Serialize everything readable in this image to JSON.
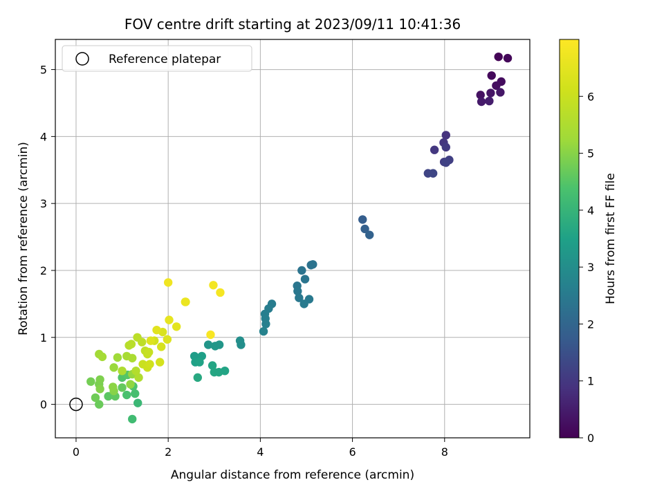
{
  "chart_data": {
    "type": "scatter",
    "title": "FOV centre drift starting at 2023/09/11 10:41:36",
    "xlabel": "Angular distance from reference (arcmin)",
    "ylabel": "Rotation from reference (arcmin)",
    "xlim": [
      -0.45,
      9.85
    ],
    "ylim": [
      -0.5,
      5.45
    ],
    "xticks": [
      0,
      2,
      4,
      6,
      8
    ],
    "yticks": [
      0,
      1,
      2,
      3,
      4,
      5
    ],
    "grid": true,
    "legend": {
      "placement": "top-left",
      "entries": [
        "Reference platepar"
      ]
    },
    "colormap": "viridis",
    "colorbar": {
      "label": "Hours from first FF file",
      "range": [
        0,
        7.0
      ],
      "ticks": [
        0,
        1,
        2,
        3,
        4,
        5,
        6
      ]
    },
    "reference_point": {
      "x": 0,
      "y": 0,
      "name": "Reference platepar"
    },
    "series": [
      {
        "points": [
          {
            "x": 9.17,
            "y": 5.19,
            "c": 0.05
          },
          {
            "x": 9.37,
            "y": 5.17,
            "c": 0.1
          },
          {
            "x": 9.02,
            "y": 4.91,
            "c": 0.15
          },
          {
            "x": 9.23,
            "y": 4.82,
            "c": 0.2
          },
          {
            "x": 9.12,
            "y": 4.76,
            "c": 0.25
          },
          {
            "x": 8.78,
            "y": 4.62,
            "c": 0.3
          },
          {
            "x": 9.0,
            "y": 4.65,
            "c": 0.35
          },
          {
            "x": 9.21,
            "y": 4.66,
            "c": 0.4
          },
          {
            "x": 8.8,
            "y": 4.52,
            "c": 0.45
          },
          {
            "x": 8.97,
            "y": 4.53,
            "c": 0.5
          },
          {
            "x": 8.03,
            "y": 4.02,
            "c": 0.9
          },
          {
            "x": 7.98,
            "y": 3.91,
            "c": 0.95
          },
          {
            "x": 7.78,
            "y": 3.8,
            "c": 1.0
          },
          {
            "x": 8.03,
            "y": 3.84,
            "c": 1.05
          },
          {
            "x": 7.99,
            "y": 3.62,
            "c": 1.1
          },
          {
            "x": 8.1,
            "y": 3.65,
            "c": 1.15
          },
          {
            "x": 8.03,
            "y": 3.61,
            "c": 1.2
          },
          {
            "x": 7.64,
            "y": 3.45,
            "c": 1.25
          },
          {
            "x": 7.75,
            "y": 3.45,
            "c": 1.3
          },
          {
            "x": 6.22,
            "y": 2.76,
            "c": 1.8
          },
          {
            "x": 6.27,
            "y": 2.62,
            "c": 1.85
          },
          {
            "x": 6.37,
            "y": 2.53,
            "c": 1.9
          },
          {
            "x": 5.1,
            "y": 2.08,
            "c": 2.3
          },
          {
            "x": 5.14,
            "y": 2.09,
            "c": 2.32
          },
          {
            "x": 4.9,
            "y": 2.0,
            "c": 2.35
          },
          {
            "x": 4.97,
            "y": 1.87,
            "c": 2.38
          },
          {
            "x": 4.8,
            "y": 1.77,
            "c": 2.4
          },
          {
            "x": 4.81,
            "y": 1.69,
            "c": 2.43
          },
          {
            "x": 4.84,
            "y": 1.59,
            "c": 2.46
          },
          {
            "x": 5.06,
            "y": 1.57,
            "c": 2.48
          },
          {
            "x": 4.95,
            "y": 1.5,
            "c": 2.5
          },
          {
            "x": 4.25,
            "y": 1.5,
            "c": 2.55
          },
          {
            "x": 4.18,
            "y": 1.43,
            "c": 2.58
          },
          {
            "x": 4.1,
            "y": 1.35,
            "c": 2.6
          },
          {
            "x": 4.11,
            "y": 1.28,
            "c": 2.63
          },
          {
            "x": 4.12,
            "y": 1.2,
            "c": 2.66
          },
          {
            "x": 4.07,
            "y": 1.09,
            "c": 2.7
          },
          {
            "x": 3.56,
            "y": 0.95,
            "c": 3.0
          },
          {
            "x": 3.58,
            "y": 0.89,
            "c": 3.02
          },
          {
            "x": 2.87,
            "y": 0.89,
            "c": 3.2
          },
          {
            "x": 3.02,
            "y": 0.87,
            "c": 3.25
          },
          {
            "x": 3.11,
            "y": 0.89,
            "c": 3.22
          },
          {
            "x": 2.57,
            "y": 0.72,
            "c": 3.4
          },
          {
            "x": 2.73,
            "y": 0.72,
            "c": 3.45
          },
          {
            "x": 2.59,
            "y": 0.63,
            "c": 3.5
          },
          {
            "x": 2.68,
            "y": 0.63,
            "c": 3.55
          },
          {
            "x": 2.96,
            "y": 0.58,
            "c": 3.6
          },
          {
            "x": 3.0,
            "y": 0.48,
            "c": 3.65
          },
          {
            "x": 3.1,
            "y": 0.48,
            "c": 3.62
          },
          {
            "x": 3.23,
            "y": 0.5,
            "c": 3.58
          },
          {
            "x": 2.64,
            "y": 0.4,
            "c": 3.7
          },
          {
            "x": 1.34,
            "y": 0.02,
            "c": 4.1
          },
          {
            "x": 1.22,
            "y": -0.22,
            "c": 4.2
          },
          {
            "x": 1.28,
            "y": 0.16,
            "c": 4.3
          },
          {
            "x": 1.1,
            "y": 0.14,
            "c": 4.35
          },
          {
            "x": 1.24,
            "y": 0.27,
            "c": 4.4
          },
          {
            "x": 1.0,
            "y": 0.4,
            "c": 4.45
          },
          {
            "x": 1.12,
            "y": 0.44,
            "c": 4.5
          },
          {
            "x": 0.7,
            "y": 0.12,
            "c": 4.55
          },
          {
            "x": 0.85,
            "y": 0.12,
            "c": 4.6
          },
          {
            "x": 1.0,
            "y": 0.25,
            "c": 4.65
          },
          {
            "x": 0.5,
            "y": 0.0,
            "c": 4.7
          },
          {
            "x": 0.42,
            "y": 0.1,
            "c": 4.75
          },
          {
            "x": 0.32,
            "y": 0.34,
            "c": 4.8
          },
          {
            "x": 0.5,
            "y": 0.3,
            "c": 4.85
          },
          {
            "x": 0.52,
            "y": 0.37,
            "c": 4.9
          },
          {
            "x": 0.52,
            "y": 0.23,
            "c": 4.95
          },
          {
            "x": 0.82,
            "y": 0.2,
            "c": 5.0
          },
          {
            "x": 0.8,
            "y": 0.26,
            "c": 5.05
          },
          {
            "x": 1.18,
            "y": 0.3,
            "c": 5.1
          },
          {
            "x": 1.22,
            "y": 0.45,
            "c": 5.15
          },
          {
            "x": 0.82,
            "y": 0.55,
            "c": 5.2
          },
          {
            "x": 0.9,
            "y": 0.7,
            "c": 5.25
          },
          {
            "x": 0.5,
            "y": 0.75,
            "c": 5.3
          },
          {
            "x": 0.57,
            "y": 0.71,
            "c": 5.35
          },
          {
            "x": 1.1,
            "y": 0.72,
            "c": 5.4
          },
          {
            "x": 1.22,
            "y": 0.69,
            "c": 5.45
          },
          {
            "x": 1.0,
            "y": 0.5,
            "c": 5.5
          },
          {
            "x": 1.36,
            "y": 0.4,
            "c": 5.55
          },
          {
            "x": 1.3,
            "y": 0.5,
            "c": 5.6
          },
          {
            "x": 1.15,
            "y": 0.88,
            "c": 5.65
          },
          {
            "x": 1.2,
            "y": 0.9,
            "c": 5.7
          },
          {
            "x": 1.33,
            "y": 1.0,
            "c": 5.75
          },
          {
            "x": 1.43,
            "y": 0.93,
            "c": 5.8
          },
          {
            "x": 1.5,
            "y": 0.8,
            "c": 5.85
          },
          {
            "x": 1.55,
            "y": 0.75,
            "c": 5.9
          },
          {
            "x": 1.58,
            "y": 0.78,
            "c": 5.95
          },
          {
            "x": 1.45,
            "y": 0.6,
            "c": 6.0
          },
          {
            "x": 1.55,
            "y": 0.55,
            "c": 6.05
          },
          {
            "x": 1.6,
            "y": 0.6,
            "c": 6.1
          },
          {
            "x": 1.7,
            "y": 0.95,
            "c": 6.15
          },
          {
            "x": 1.82,
            "y": 0.63,
            "c": 6.2
          },
          {
            "x": 1.85,
            "y": 0.86,
            "c": 6.25
          },
          {
            "x": 1.88,
            "y": 1.08,
            "c": 6.3
          },
          {
            "x": 1.98,
            "y": 0.97,
            "c": 6.35
          },
          {
            "x": 1.62,
            "y": 0.95,
            "c": 6.4
          },
          {
            "x": 1.75,
            "y": 1.11,
            "c": 6.45
          },
          {
            "x": 2.18,
            "y": 1.16,
            "c": 6.5
          },
          {
            "x": 2.02,
            "y": 1.26,
            "c": 6.55
          },
          {
            "x": 2.37,
            "y": 1.53,
            "c": 6.6
          },
          {
            "x": 2.38,
            "y": 1.53,
            "c": 6.65
          },
          {
            "x": 2.0,
            "y": 1.82,
            "c": 6.75
          },
          {
            "x": 2.98,
            "y": 1.78,
            "c": 6.8
          },
          {
            "x": 3.13,
            "y": 1.67,
            "c": 6.85
          },
          {
            "x": 2.92,
            "y": 1.04,
            "c": 6.9
          }
        ]
      }
    ]
  }
}
